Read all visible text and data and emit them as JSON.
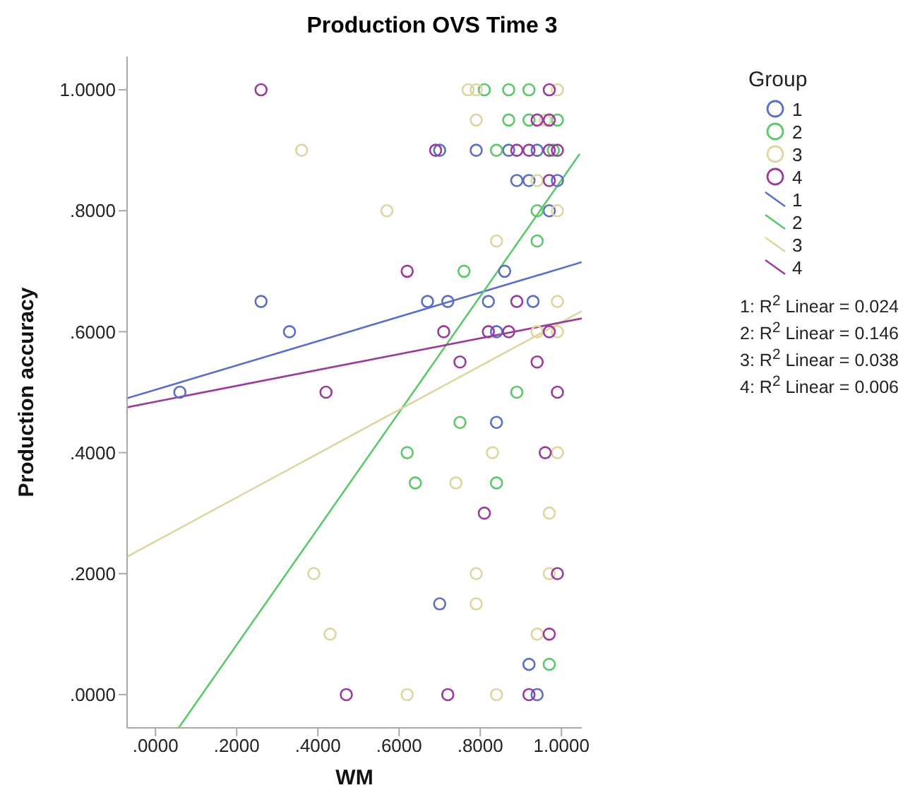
{
  "chart_data": {
    "type": "scatter",
    "title": "Production OVS Time 3",
    "xlabel": "WM",
    "ylabel": "Production accuracy",
    "legend_title": "Group",
    "legend": "right",
    "grid": false,
    "xlim": [
      -0.07,
      1.05
    ],
    "ylim": [
      -0.055,
      1.055
    ],
    "xticks": [
      {
        "value": 0,
        "label": ".0000"
      },
      {
        "value": 0.2,
        "label": ".2000"
      },
      {
        "value": 0.4,
        "label": ".4000"
      },
      {
        "value": 0.6,
        "label": ".6000"
      },
      {
        "value": 0.8,
        "label": ".8000"
      },
      {
        "value": 1,
        "label": "1.0000"
      }
    ],
    "yticks": [
      {
        "value": 0,
        "label": ".0000"
      },
      {
        "value": 0.2,
        "label": ".2000"
      },
      {
        "value": 0.4,
        "label": ".4000"
      },
      {
        "value": 0.6,
        "label": ".6000"
      },
      {
        "value": 0.8,
        "label": ".8000"
      },
      {
        "value": 1,
        "label": "1.0000"
      }
    ],
    "series": [
      {
        "name": "1",
        "marker": "circle",
        "color": "#5a6fc8",
        "x": [
          0.79,
          0.7,
          0.87,
          0.94,
          0.89,
          0.92,
          0.99,
          0.97,
          0.86,
          0.26,
          0.67,
          0.72,
          0.82,
          0.93,
          0.33,
          0.84,
          0.06,
          0.84,
          0.7,
          0.92,
          0.94
        ],
        "values": [
          0.9,
          0.9,
          0.9,
          0.9,
          0.85,
          0.85,
          0.85,
          0.8,
          0.7,
          0.65,
          0.65,
          0.65,
          0.65,
          0.65,
          0.6,
          0.6,
          0.5,
          0.45,
          0.15,
          0.05,
          0.0
        ]
      },
      {
        "name": "2",
        "marker": "circle",
        "color": "#5cc86a",
        "x": [
          0.81,
          0.87,
          0.92,
          0.87,
          0.92,
          0.99,
          0.84,
          0.98,
          0.94,
          0.94,
          0.76,
          0.89,
          0.75,
          0.62,
          0.64,
          0.84,
          0.97
        ],
        "values": [
          1.0,
          1.0,
          1.0,
          0.95,
          0.95,
          0.95,
          0.9,
          0.9,
          0.8,
          0.75,
          0.7,
          0.5,
          0.45,
          0.4,
          0.35,
          0.35,
          0.05
        ]
      },
      {
        "name": "3",
        "marker": "circle",
        "color": "#ddd6a0",
        "x": [
          0.77,
          0.79,
          0.99,
          0.79,
          0.96,
          0.36,
          0.94,
          0.57,
          0.99,
          0.84,
          0.99,
          0.94,
          0.99,
          0.83,
          0.99,
          0.74,
          0.97,
          0.39,
          0.79,
          0.97,
          0.79,
          0.43,
          0.94,
          0.62,
          0.84
        ],
        "values": [
          1.0,
          1.0,
          1.0,
          0.95,
          0.95,
          0.9,
          0.85,
          0.8,
          0.8,
          0.75,
          0.65,
          0.6,
          0.6,
          0.4,
          0.4,
          0.35,
          0.3,
          0.2,
          0.2,
          0.2,
          0.15,
          0.1,
          0.1,
          0.0,
          0.0
        ]
      },
      {
        "name": "4",
        "marker": "circle",
        "color": "#9b3c9b",
        "x": [
          0.26,
          0.97,
          0.94,
          0.97,
          0.69,
          0.89,
          0.92,
          0.97,
          0.99,
          0.97,
          0.62,
          0.89,
          0.71,
          0.82,
          0.87,
          0.97,
          0.75,
          0.94,
          0.42,
          0.99,
          0.96,
          0.81,
          0.99,
          0.97,
          0.47,
          0.72,
          0.92
        ],
        "values": [
          1.0,
          1.0,
          0.95,
          0.95,
          0.9,
          0.9,
          0.9,
          0.9,
          0.9,
          0.85,
          0.7,
          0.65,
          0.6,
          0.6,
          0.6,
          0.6,
          0.55,
          0.55,
          0.5,
          0.5,
          0.4,
          0.3,
          0.2,
          0.1,
          0.0,
          0.0,
          0.0
        ]
      },
      {
        "name": "1",
        "type": "line",
        "marker": "none",
        "color": "#5a6fc8",
        "x": [
          -0.07,
          1.05
        ],
        "values": [
          0.49,
          0.715
        ]
      },
      {
        "name": "2",
        "type": "line",
        "marker": "none",
        "color": "#5cc86a",
        "x": [
          0.057,
          1.045
        ],
        "values": [
          -0.055,
          0.894
        ]
      },
      {
        "name": "3",
        "type": "line",
        "marker": "none",
        "color": "#ddd6a0",
        "x": [
          -0.07,
          1.05
        ],
        "values": [
          0.228,
          0.634
        ]
      },
      {
        "name": "4",
        "type": "line",
        "marker": "none",
        "color": "#9b3c9b",
        "x": [
          -0.07,
          1.05
        ],
        "values": [
          0.475,
          0.622
        ]
      }
    ],
    "annotations": [
      "1: R$^{2}$ Linear = 0.024",
      "2: R$^{2}$ Linear = 0.146",
      "3: R$^{2}$ Linear = 0.038",
      "4: R$^{2}$ Linear = 0.006"
    ]
  }
}
